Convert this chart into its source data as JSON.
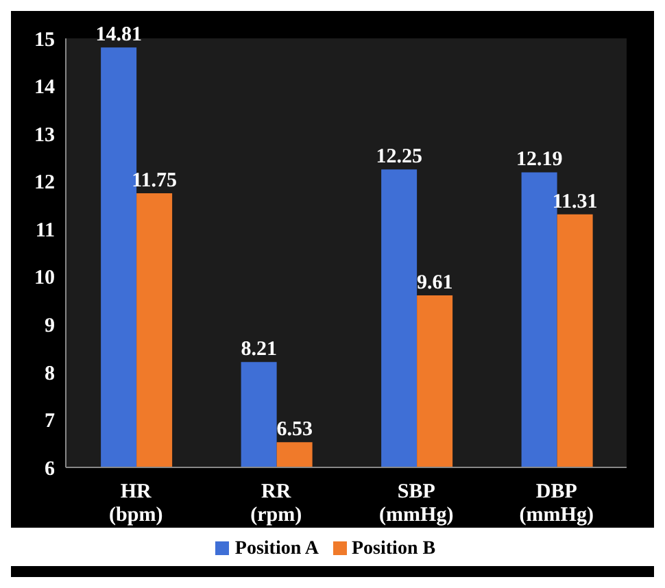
{
  "chart_data": {
    "type": "bar",
    "categories": [
      "HR\n(bpm)",
      "RR\n(rpm)",
      "SBP\n(mmHg)",
      "DBP\n(mmHg)"
    ],
    "series": [
      {
        "name": "Position A",
        "color": "#3f6fd6",
        "values": [
          14.81,
          8.21,
          12.25,
          12.19
        ]
      },
      {
        "name": "Position B",
        "color": "#f07a2a",
        "values": [
          11.75,
          6.53,
          9.61,
          11.31
        ]
      }
    ],
    "ylim": [
      6,
      15
    ],
    "yticks": [
      6,
      7,
      8,
      9,
      10,
      11,
      12,
      13,
      14,
      15
    ],
    "data_labels": true,
    "legend": "bottom"
  }
}
